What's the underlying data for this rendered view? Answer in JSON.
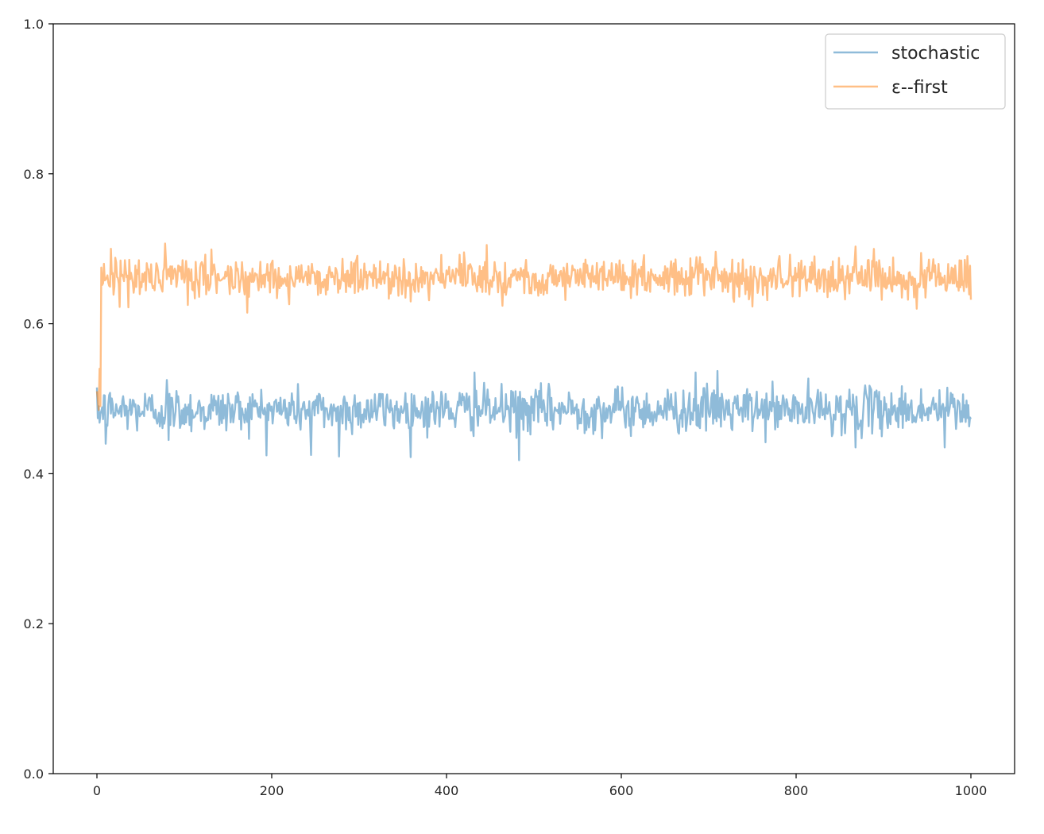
{
  "chart_data": {
    "type": "line",
    "title": "",
    "xlabel": "",
    "ylabel": "",
    "xlim": [
      -50,
      1050
    ],
    "ylim": [
      0.0,
      1.0
    ],
    "x_ticks": [
      0,
      200,
      400,
      600,
      800,
      1000
    ],
    "x_tick_labels": [
      "0",
      "200",
      "400",
      "600",
      "800",
      "1000"
    ],
    "y_ticks": [
      0.0,
      0.2,
      0.4,
      0.6,
      0.8,
      1.0
    ],
    "y_tick_labels": [
      "0.0",
      "0.2",
      "0.4",
      "0.6",
      "0.8",
      "1.0"
    ],
    "grid": false,
    "legend_position": "top-right",
    "series": [
      {
        "name": "stochastic",
        "color": "#1f77b4",
        "alpha": 0.5,
        "x_start": 0,
        "x_end": 1000,
        "mean": 0.485,
        "noise_sd": 0.015,
        "anchors": [
          {
            "x": 0,
            "y": 0.515
          },
          {
            "x": 2,
            "y": 0.49
          },
          {
            "x": 4,
            "y": 0.48
          },
          {
            "x": 10,
            "y": 0.44
          },
          {
            "x": 80,
            "y": 0.525
          },
          {
            "x": 82,
            "y": 0.445
          },
          {
            "x": 245,
            "y": 0.425
          },
          {
            "x": 277,
            "y": 0.423
          },
          {
            "x": 432,
            "y": 0.535
          },
          {
            "x": 483,
            "y": 0.418
          },
          {
            "x": 685,
            "y": 0.535
          },
          {
            "x": 710,
            "y": 0.537
          },
          {
            "x": 868,
            "y": 0.435
          },
          {
            "x": 970,
            "y": 0.435
          },
          {
            "x": 1000,
            "y": 0.473
          }
        ]
      },
      {
        "name": "ε--first",
        "color": "#ff7f0e",
        "alpha": 0.5,
        "x_start": 0,
        "x_end": 1000,
        "mean": 0.662,
        "noise_sd": 0.013,
        "anchors": [
          {
            "x": 0,
            "y": 0.51
          },
          {
            "x": 1,
            "y": 0.5
          },
          {
            "x": 2,
            "y": 0.485
          },
          {
            "x": 3,
            "y": 0.54
          },
          {
            "x": 4,
            "y": 0.49
          },
          {
            "x": 5,
            "y": 0.675
          },
          {
            "x": 8,
            "y": 0.68
          },
          {
            "x": 16,
            "y": 0.7
          },
          {
            "x": 104,
            "y": 0.625
          },
          {
            "x": 446,
            "y": 0.705
          },
          {
            "x": 750,
            "y": 0.623
          },
          {
            "x": 868,
            "y": 0.703
          },
          {
            "x": 938,
            "y": 0.62
          },
          {
            "x": 1000,
            "y": 0.632
          }
        ]
      }
    ]
  }
}
